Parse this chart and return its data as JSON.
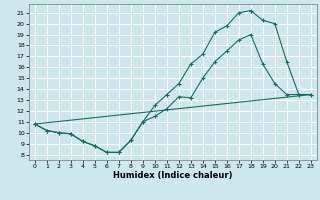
{
  "xlabel": "Humidex (Indice chaleur)",
  "bg_color": "#cce8ec",
  "grid_color": "#ffffff",
  "line_color": "#1a6b60",
  "xlim": [
    -0.5,
    23.5
  ],
  "ylim": [
    7.5,
    21.8
  ],
  "xticks": [
    0,
    1,
    2,
    3,
    4,
    5,
    6,
    7,
    8,
    9,
    10,
    11,
    12,
    13,
    14,
    15,
    16,
    17,
    18,
    19,
    20,
    21,
    22,
    23
  ],
  "yticks": [
    8,
    9,
    10,
    11,
    12,
    13,
    14,
    15,
    16,
    17,
    18,
    19,
    20,
    21
  ],
  "line1_x": [
    0,
    1,
    2,
    3,
    4,
    5,
    6,
    7,
    8,
    9,
    10,
    11,
    12,
    13,
    14,
    15,
    16,
    17,
    18,
    19,
    20,
    21,
    22,
    23
  ],
  "line1_y": [
    10.8,
    10.2,
    10.0,
    9.9,
    9.2,
    8.8,
    8.2,
    8.2,
    9.3,
    11.0,
    11.5,
    12.2,
    13.3,
    13.2,
    15.0,
    16.5,
    17.5,
    18.5,
    19.0,
    16.3,
    14.5,
    13.5,
    13.5,
    13.5
  ],
  "line2_x": [
    0,
    1,
    2,
    3,
    4,
    5,
    6,
    7,
    8,
    9,
    10,
    11,
    12,
    13,
    14,
    15,
    16,
    17,
    18,
    19,
    20,
    21,
    22,
    23
  ],
  "line2_y": [
    10.8,
    10.2,
    10.0,
    9.9,
    9.2,
    8.8,
    8.2,
    8.2,
    9.3,
    11.0,
    12.5,
    13.5,
    14.5,
    16.3,
    17.2,
    19.2,
    19.8,
    21.0,
    21.2,
    20.3,
    20.0,
    16.5,
    13.5,
    13.5
  ],
  "line3_x": [
    0,
    23
  ],
  "line3_y": [
    10.8,
    13.5
  ]
}
